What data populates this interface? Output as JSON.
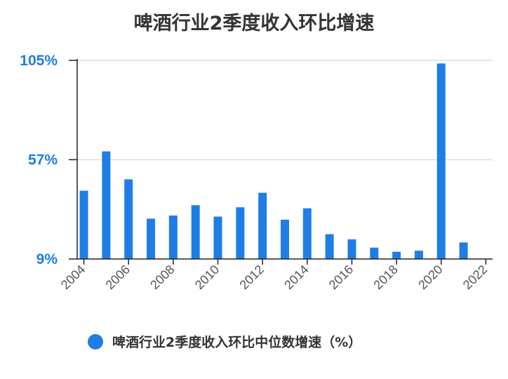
{
  "chart_data": {
    "type": "bar",
    "title": "啤酒行业2季度收入环比增速",
    "xlabel": "",
    "ylabel": "",
    "x": [
      2004,
      2005,
      2006,
      2007,
      2008,
      2009,
      2010,
      2011,
      2012,
      2013,
      2014,
      2015,
      2016,
      2017,
      2018,
      2019,
      2020,
      2021
    ],
    "x_tick_labels": [
      "2004",
      "2006",
      "2008",
      "2010",
      "2012",
      "2014",
      "2016",
      "2018",
      "2020",
      "2022"
    ],
    "y_tick_labels": [
      "105%",
      "57%",
      "9%"
    ],
    "ylim": [
      9,
      105
    ],
    "xlim": [
      2003.7,
      2022.3
    ],
    "series": [
      {
        "name": "啤酒行业2季度收入环比中位数增速（%）",
        "values": [
          42,
          61,
          47.5,
          28.5,
          30,
          35,
          29.5,
          34,
          41,
          28,
          33.5,
          21,
          18.5,
          14.5,
          12.5,
          13,
          103.5,
          17
        ]
      }
    ],
    "grid": true,
    "legend_position": "bottom",
    "colors": {
      "bar": "#1f7de6",
      "ytick": "#1f7de6",
      "grid": "#dddddd",
      "axis": "#222222",
      "title": "#333333"
    }
  }
}
